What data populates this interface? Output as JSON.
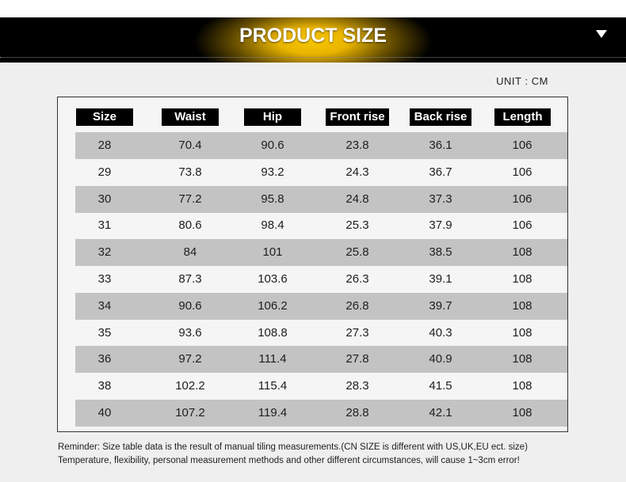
{
  "banner": {
    "title": "PRODUCT SIZE",
    "arrow_icon": "triangle-down-icon"
  },
  "unit_label": "UNIT : CM",
  "table": {
    "headers": [
      "Size",
      "Waist",
      "Hip",
      "Front rise",
      "Back rise",
      "Length"
    ],
    "rows": [
      [
        "28",
        "70.4",
        "90.6",
        "23.8",
        "36.1",
        "106"
      ],
      [
        "29",
        "73.8",
        "93.2",
        "24.3",
        "36.7",
        "106"
      ],
      [
        "30",
        "77.2",
        "95.8",
        "24.8",
        "37.3",
        "106"
      ],
      [
        "31",
        "80.6",
        "98.4",
        "25.3",
        "37.9",
        "106"
      ],
      [
        "32",
        "84",
        "101",
        "25.8",
        "38.5",
        "108"
      ],
      [
        "33",
        "87.3",
        "103.6",
        "26.3",
        "39.1",
        "108"
      ],
      [
        "34",
        "90.6",
        "106.2",
        "26.8",
        "39.7",
        "108"
      ],
      [
        "35",
        "93.6",
        "108.8",
        "27.3",
        "40.3",
        "108"
      ],
      [
        "36",
        "97.2",
        "111.4",
        "27.8",
        "40.9",
        "108"
      ],
      [
        "38",
        "102.2",
        "115.4",
        "28.3",
        "41.5",
        "108"
      ],
      [
        "40",
        "107.2",
        "119.4",
        "28.8",
        "42.1",
        "108"
      ]
    ]
  },
  "notes": {
    "line1": "Reminder: Size table data is the result of manual tiling measurements.(CN SIZE is different with US,UK,EU ect. size)",
    "line2": "Temperature, flexibility, personal measurement methods and other different circumstances, will cause 1~3cm error!"
  },
  "colors": {
    "accent": "#f7c600",
    "header_bg": "#000000",
    "row_shade": "#c3c3c3",
    "page_bg": "#efefef"
  }
}
